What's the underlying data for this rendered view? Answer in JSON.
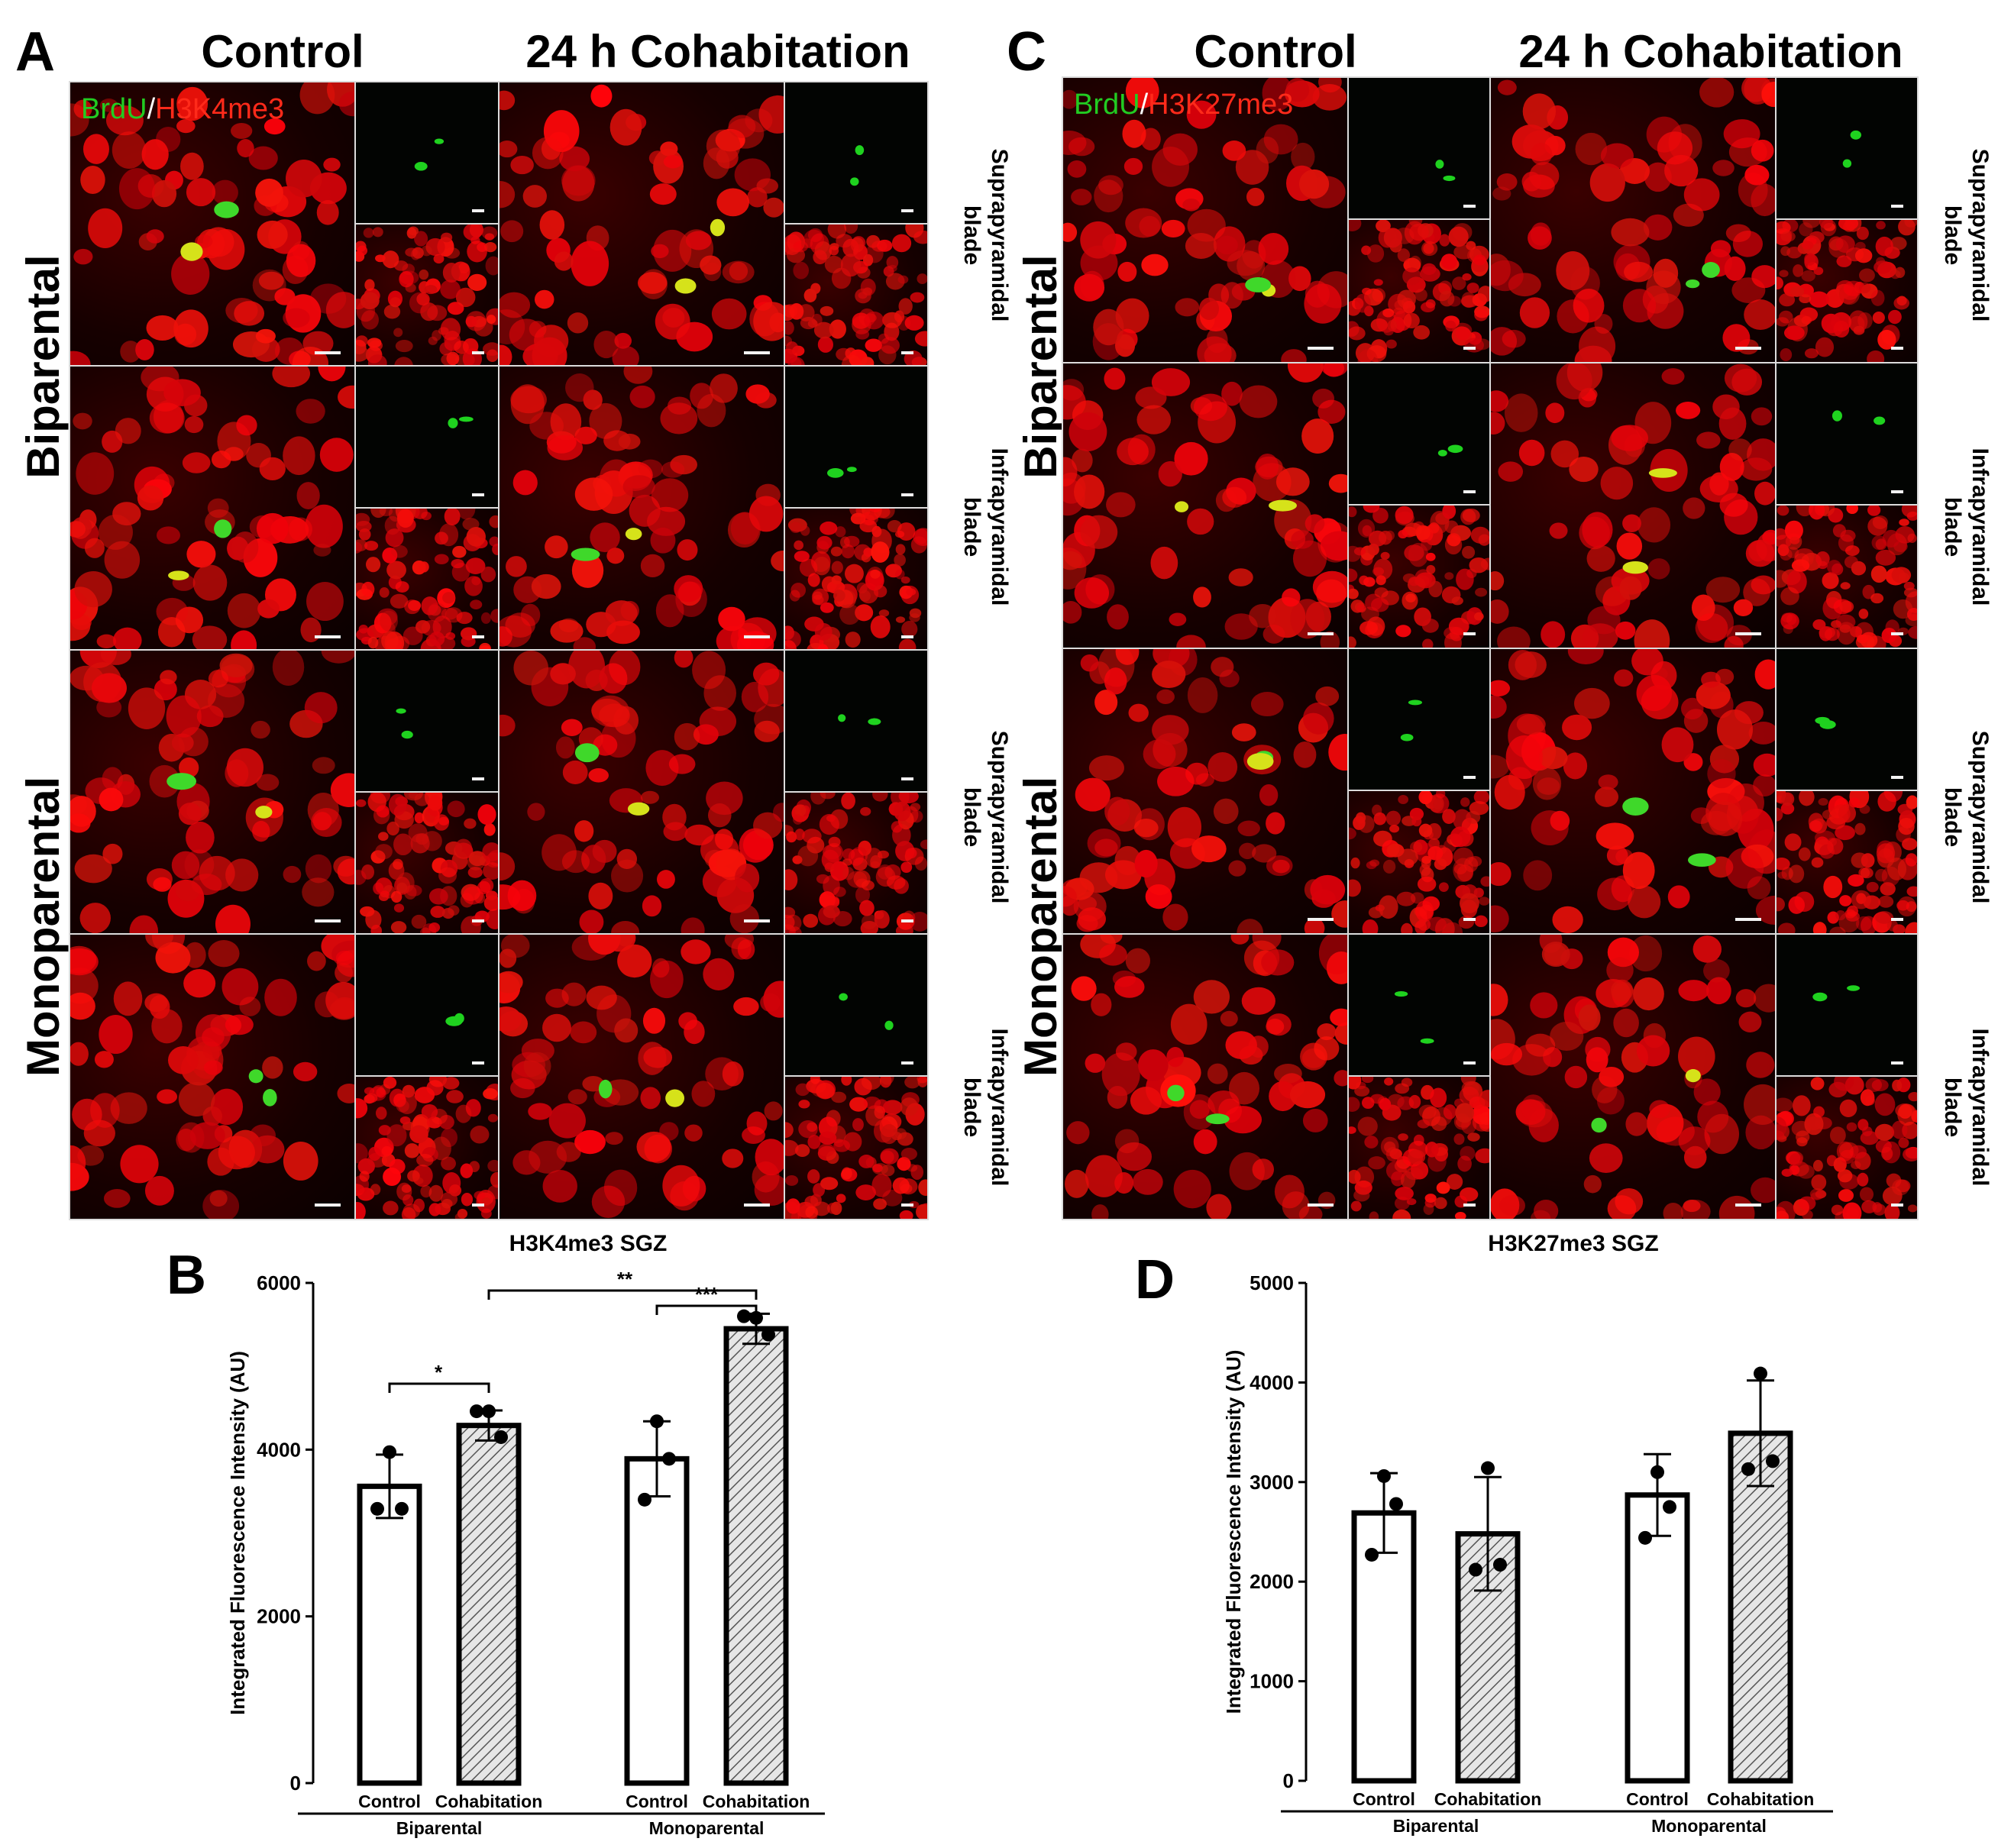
{
  "figure": {
    "panel_labels": {
      "a": "A",
      "b": "B",
      "c": "C",
      "d": "D"
    },
    "column_headers": {
      "a_control": "Control",
      "a_cohab": "24 h Cohabitation",
      "c_control": "Control",
      "c_cohab": "24 h Cohabitation"
    },
    "row_headers": {
      "a_bi": "Biparental",
      "a_mono": "Monoparental",
      "c_bi": "Biparental",
      "c_mono": "Monoparental"
    },
    "stain_legend": {
      "a_green": "BrdU",
      "a_sep": "/",
      "a_red": "H3K4me3",
      "c_green": "BrdU",
      "c_sep": "/",
      "c_red": "H3K27me3"
    },
    "blade_labels": {
      "a1_l1": "Suprapyramidal",
      "a1_l2": "blade",
      "a2_l1": "Infrapyramidal",
      "a2_l2": "blade",
      "a3_l1": "Suprapyramidal",
      "a3_l2": "blade",
      "a4_l1": "Infrapyramidal",
      "a4_l2": "blade",
      "c1_l1": "Suprapyramidal",
      "c1_l2": "blade",
      "c2_l1": "Infrapyramidal",
      "c2_l2": "blade",
      "c3_l1": "Suprapyramidal",
      "c3_l2": "blade",
      "c4_l1": "Infrapyramidal",
      "c4_l2": "blade"
    },
    "colors": {
      "brdu": "#22cc22",
      "h3": "#ff2a1a",
      "hatch": "#555555"
    }
  },
  "chart_data": [
    {
      "type": "bar",
      "panel": "B",
      "title": "H3K4me3 SGZ",
      "ylabel": "Integrated Fluorescence Intensity (AU)",
      "ylim": [
        0,
        6000
      ],
      "yticks": [
        "0",
        "2000",
        "4000",
        "6000"
      ],
      "groups": [
        "Biparental",
        "Monoparental"
      ],
      "categories": [
        "Control",
        "Cohabitation",
        "Control",
        "Cohabitation"
      ],
      "values": [
        3560,
        4290,
        3890,
        5450
      ],
      "error": [
        380,
        180,
        450,
        180
      ],
      "points": [
        [
          3970,
          3290,
          3290
        ],
        [
          4460,
          4460,
          4150
        ],
        [
          4340,
          3400,
          3890
        ],
        [
          5580,
          5600,
          5380
        ]
      ],
      "significance": [
        {
          "from": 0,
          "to": 1,
          "label": "*"
        },
        {
          "from": 1,
          "to": 3,
          "label": "**"
        },
        {
          "from": 2,
          "to": 3,
          "label": "***"
        }
      ]
    },
    {
      "type": "bar",
      "panel": "D",
      "title": "H3K27me3 SGZ",
      "ylabel": "Integrated Fluorescence Intensity (AU)",
      "ylim": [
        0,
        5000
      ],
      "yticks": [
        "0",
        "1000",
        "2000",
        "3000",
        "4000",
        "5000"
      ],
      "groups": [
        "Biparental",
        "Monoparental"
      ],
      "categories": [
        "Control",
        "Cohabitation",
        "Control",
        "Cohabitation"
      ],
      "values": [
        2690,
        2480,
        2870,
        3490
      ],
      "error": [
        400,
        570,
        410,
        530
      ],
      "points": [
        [
          3060,
          2270,
          2780
        ],
        [
          3140,
          2120,
          2170
        ],
        [
          3100,
          2440,
          2750
        ],
        [
          4090,
          3130,
          3210
        ]
      ],
      "significance": []
    }
  ]
}
